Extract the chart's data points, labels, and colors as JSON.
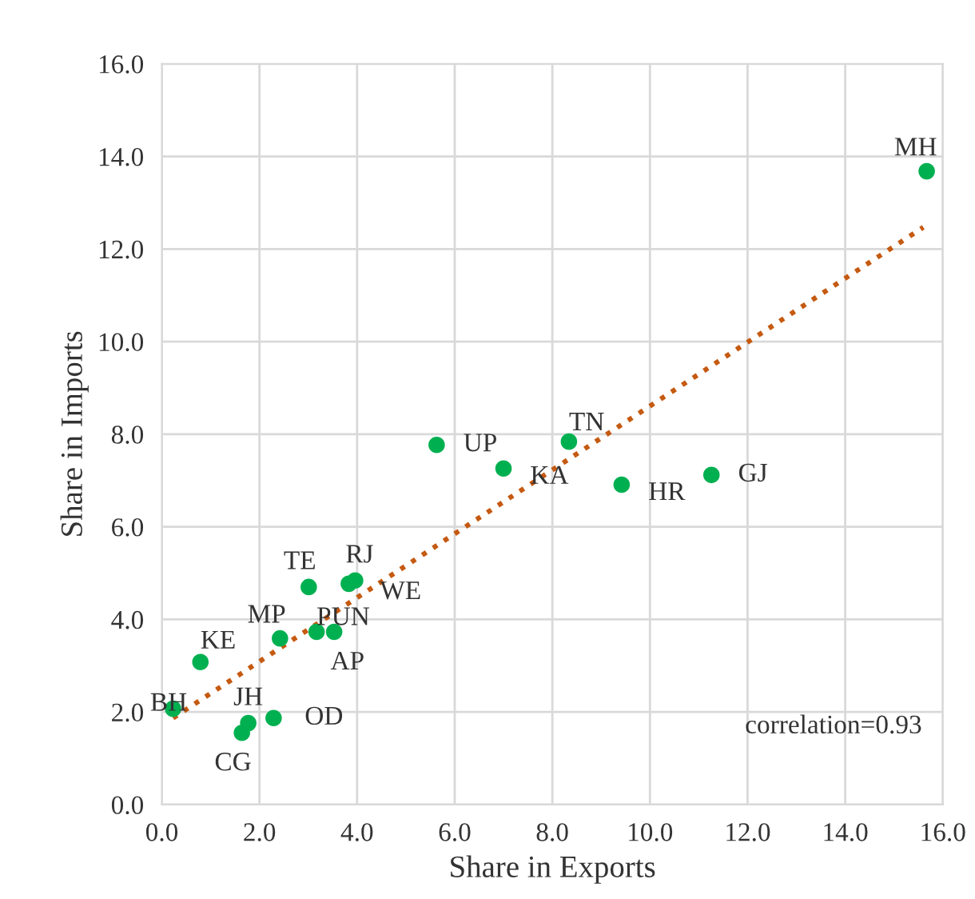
{
  "chart_data": {
    "type": "scatter",
    "xlabel": "Share in Exports",
    "ylabel": "Share in Imports",
    "xlim": [
      0,
      16
    ],
    "ylim": [
      0,
      16
    ],
    "xticks": [
      {
        "value": 0,
        "label": "0.0"
      },
      {
        "value": 2,
        "label": "2.0"
      },
      {
        "value": 4,
        "label": "4.0"
      },
      {
        "value": 6,
        "label": "6.0"
      },
      {
        "value": 8,
        "label": "8.0"
      },
      {
        "value": 10,
        "label": "10.0"
      },
      {
        "value": 12,
        "label": "12.0"
      },
      {
        "value": 14,
        "label": "14.0"
      },
      {
        "value": 16,
        "label": "16.0"
      }
    ],
    "yticks": [
      {
        "value": 0,
        "label": "0.0"
      },
      {
        "value": 2,
        "label": "2.0"
      },
      {
        "value": 4,
        "label": "4.0"
      },
      {
        "value": 6,
        "label": "6.0"
      },
      {
        "value": 8,
        "label": "8.0"
      },
      {
        "value": 10,
        "label": "10.0"
      },
      {
        "value": 12,
        "label": "12.0"
      },
      {
        "value": 14,
        "label": "14.0"
      },
      {
        "value": 16,
        "label": "16.0"
      }
    ],
    "grid": true,
    "legend": false,
    "series": [
      {
        "marker": "circle",
        "color": "#00b050",
        "x": [
          15.67,
          8.34,
          5.63,
          7.0,
          9.42,
          11.26,
          3.01,
          3.96,
          3.83,
          3.17,
          3.53,
          2.42,
          0.79,
          0.23,
          1.77,
          1.64,
          2.29
        ],
        "values": [
          13.68,
          7.84,
          7.77,
          7.26,
          6.91,
          7.12,
          4.7,
          4.84,
          4.77,
          3.73,
          3.73,
          3.59,
          3.08,
          2.07,
          1.76,
          1.55,
          1.87
        ]
      },
      {
        "type": "line",
        "color": "#c55a11",
        "line_style": "dotted",
        "x": [
          0.23,
          15.6
        ],
        "values": [
          1.87,
          12.47
        ]
      }
    ],
    "annotations": [
      {
        "text": "MH",
        "x": 15.67,
        "y": 13.68
      },
      {
        "text": "TN",
        "x": 8.34,
        "y": 7.84
      },
      {
        "text": "UP",
        "x": 5.63,
        "y": 7.77
      },
      {
        "text": "KA",
        "x": 7.0,
        "y": 7.26
      },
      {
        "text": "HR",
        "x": 9.42,
        "y": 6.91
      },
      {
        "text": "GJ",
        "x": 11.26,
        "y": 7.12
      },
      {
        "text": "TE",
        "x": 3.01,
        "y": 4.7
      },
      {
        "text": "RJ",
        "x": 3.96,
        "y": 4.84
      },
      {
        "text": "WE",
        "x": 3.83,
        "y": 4.77
      },
      {
        "text": "PUN",
        "x": 3.17,
        "y": 3.73
      },
      {
        "text": "AP",
        "x": 3.53,
        "y": 3.73
      },
      {
        "text": "MP",
        "x": 2.42,
        "y": 3.59
      },
      {
        "text": "KE",
        "x": 0.79,
        "y": 3.08
      },
      {
        "text": "BH",
        "x": 0.23,
        "y": 2.07
      },
      {
        "text": "JH",
        "x": 1.77,
        "y": 1.76
      },
      {
        "text": "CG",
        "x": 1.64,
        "y": 1.55
      },
      {
        "text": "OD",
        "x": 2.29,
        "y": 1.87
      },
      "correlation=0.93"
    ]
  }
}
